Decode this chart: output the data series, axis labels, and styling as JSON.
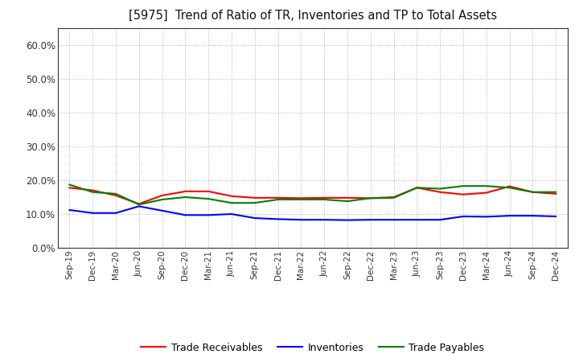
{
  "title": "[5975]  Trend of Ratio of TR, Inventories and TP to Total Assets",
  "x_labels": [
    "Sep-19",
    "Dec-19",
    "Mar-20",
    "Jun-20",
    "Sep-20",
    "Dec-20",
    "Mar-21",
    "Jun-21",
    "Sep-21",
    "Dec-21",
    "Mar-22",
    "Jun-22",
    "Sep-22",
    "Dec-22",
    "Mar-23",
    "Jun-23",
    "Sep-23",
    "Dec-23",
    "Mar-24",
    "Jun-24",
    "Sep-24",
    "Dec-24"
  ],
  "trade_receivables": [
    0.178,
    0.17,
    0.155,
    0.13,
    0.155,
    0.167,
    0.167,
    0.153,
    0.148,
    0.148,
    0.147,
    0.148,
    0.148,
    0.147,
    0.15,
    0.178,
    0.165,
    0.158,
    0.163,
    0.182,
    0.165,
    0.16
  ],
  "inventories": [
    0.112,
    0.103,
    0.103,
    0.123,
    0.11,
    0.097,
    0.097,
    0.1,
    0.088,
    0.085,
    0.083,
    0.083,
    0.082,
    0.083,
    0.083,
    0.083,
    0.083,
    0.093,
    0.092,
    0.095,
    0.095,
    0.093
  ],
  "trade_payables": [
    0.187,
    0.165,
    0.16,
    0.128,
    0.143,
    0.15,
    0.145,
    0.133,
    0.133,
    0.143,
    0.143,
    0.143,
    0.138,
    0.147,
    0.148,
    0.178,
    0.175,
    0.183,
    0.183,
    0.178,
    0.165,
    0.165
  ],
  "tr_color": "#ff0000",
  "inv_color": "#0000ff",
  "tp_color": "#008000",
  "ylim": [
    0.0,
    0.65
  ],
  "yticks": [
    0.0,
    0.1,
    0.2,
    0.3,
    0.4,
    0.5,
    0.6
  ],
  "background_color": "#ffffff",
  "grid_color": "#999999",
  "legend_labels": [
    "Trade Receivables",
    "Inventories",
    "Trade Payables"
  ]
}
